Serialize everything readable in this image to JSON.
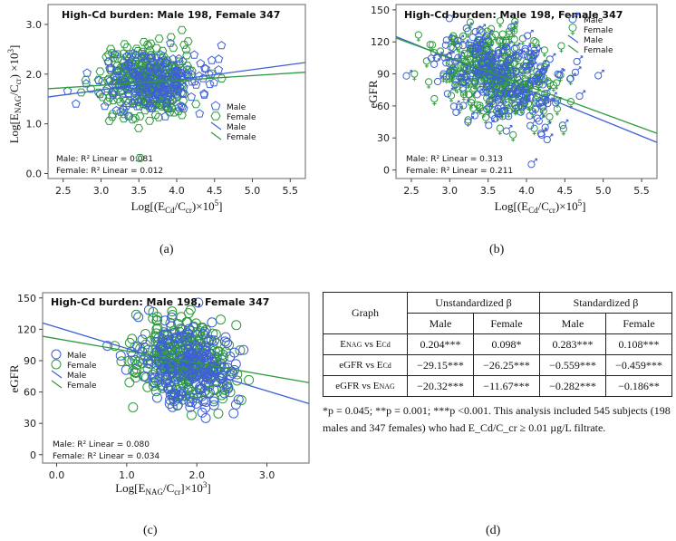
{
  "panels": [
    {
      "id": "a",
      "label": "(a)",
      "title": "High-Cd burden: Male 198, Female 347",
      "xlabel": "Log[(E_Cd/C_cr)×10^5]",
      "ylabel": "Log[E_NAG/C_cr)×10^3]",
      "xticks": [
        "2.5",
        "3.0",
        "3.5",
        "4.0",
        "4.5",
        "5.0",
        "5.5"
      ],
      "yticks": [
        "0.0",
        "1.0",
        "2.0",
        "3.0"
      ],
      "legend": [
        "Male",
        "Female",
        "Male",
        "Female"
      ],
      "annot_male": "Male: R² Linear = 0.081",
      "annot_female": "Female: R² Linear = 0.012"
    },
    {
      "id": "b",
      "label": "(b)",
      "title": "High-Cd burden: Male 198, Female 347",
      "xlabel": "Log[(E_Cd/C_cr)×10^5]",
      "ylabel": "eGFR",
      "xticks": [
        "2.5",
        "3.0",
        "3.5",
        "4.0",
        "4.5",
        "5.0",
        "5.5"
      ],
      "yticks": [
        "0",
        "30",
        "60",
        "90",
        "120",
        "150"
      ],
      "legend": [
        "Male",
        "Female",
        "Male",
        "Female"
      ],
      "annot_male": "Male: R² Linear = 0.313",
      "annot_female": "Female: R² Linear = 0.211"
    },
    {
      "id": "c",
      "label": "(c)",
      "title": "High-Cd burden: Male 198, Female 347",
      "xlabel": "Log[E_NAG/C_cr]×10^3]",
      "ylabel": "eGFR",
      "xticks": [
        "0.0",
        "1.0",
        "2.0",
        "3.0"
      ],
      "yticks": [
        "0",
        "30",
        "60",
        "90",
        "120",
        "150"
      ],
      "legend": [
        "Male",
        "Female",
        "Male",
        "Female"
      ],
      "annot_male": "Male: R² Linear = 0.080",
      "annot_female": "Female: R² Linear = 0.034"
    }
  ],
  "table": {
    "label": "(d)",
    "header_graph": "Graph",
    "header_unstd": "Unstandardized β",
    "header_std": "Standardized β",
    "sub_male": "Male",
    "sub_female": "Female",
    "rows": [
      {
        "graph": "E_NAG vs E_Cd",
        "u_male": "0.204***",
        "u_female": "0.098*",
        "s_male": "0.283***",
        "s_female": "0.108***"
      },
      {
        "graph": "eGFR vs E_Cd",
        "u_male": "−29.15***",
        "u_female": "−26.25***",
        "s_male": "−0.559***",
        "s_female": "−0.459***"
      },
      {
        "graph": "eGFR vs E_NAG",
        "u_male": "−20.32***",
        "u_female": "−11.67***",
        "s_male": "−0.282***",
        "s_female": "−0.186**"
      }
    ],
    "footnote": "*p = 0.045; **p = 0.001; ***p <0.001. This analysis included 545 subjects (198 males and 347 females) who had E_Cd/C_cr ≥ 0.01 µg/L filtrate."
  },
  "colors": {
    "male": "#3f5fd6",
    "female": "#2e9a3e",
    "frame": "#555555"
  },
  "chart_data": [
    {
      "type": "scatter",
      "title": "High-Cd burden: Male 198, Female 347",
      "xlabel": "Log[(E_Cd/C_cr)×10^5]",
      "ylabel": "Log[E_NAG/C_cr)×10^3]",
      "xlim": [
        2.3,
        5.7
      ],
      "ylim": [
        -0.1,
        3.4
      ],
      "series": [
        {
          "name": "Male",
          "n": 198,
          "marker": "pentagon",
          "x_center": 3.7,
          "y_center": 1.85,
          "x_sd": 0.35,
          "y_sd": 0.3,
          "fit": {
            "slope": 0.204,
            "intercept": 1.07
          },
          "r2": 0.081
        },
        {
          "name": "Female",
          "n": 347,
          "marker": "hexagon",
          "x_center": 3.6,
          "y_center": 1.85,
          "x_sd": 0.3,
          "y_sd": 0.35,
          "fit": {
            "slope": 0.098,
            "intercept": 1.48
          },
          "r2": 0.012
        }
      ]
    },
    {
      "type": "scatter",
      "title": "High-Cd burden: Male 198, Female 347",
      "xlabel": "Log[(E_Cd/C_cr)×10^5]",
      "ylabel": "eGFR",
      "xlim": [
        2.3,
        5.7
      ],
      "ylim": [
        -8,
        155
      ],
      "series": [
        {
          "name": "Male",
          "n": 198,
          "marker": "male-symbol",
          "x_center": 3.7,
          "y_center": 86,
          "x_sd": 0.4,
          "y_sd": 22,
          "fit": {
            "slope": -29.15,
            "intercept": 192
          },
          "r2": 0.313
        },
        {
          "name": "Female",
          "n": 347,
          "marker": "female-symbol",
          "x_center": 3.6,
          "y_center": 90,
          "x_sd": 0.35,
          "y_sd": 20,
          "fit": {
            "slope": -26.25,
            "intercept": 184
          },
          "r2": 0.211
        }
      ]
    },
    {
      "type": "scatter",
      "title": "High-Cd burden: Male 198, Female 347",
      "xlabel": "Log[E_NAG/C_cr]×10^3]",
      "ylabel": "eGFR",
      "xlim": [
        -0.2,
        3.6
      ],
      "ylim": [
        -8,
        155
      ],
      "series": [
        {
          "name": "Male",
          "n": 198,
          "marker": "circle",
          "x_center": 1.85,
          "y_center": 85,
          "x_sd": 0.35,
          "y_sd": 22,
          "fit": {
            "slope": -20.32,
            "intercept": 122
          },
          "r2": 0.08
        },
        {
          "name": "Female",
          "n": 347,
          "marker": "circle",
          "x_center": 1.8,
          "y_center": 90,
          "x_sd": 0.35,
          "y_sd": 20,
          "fit": {
            "slope": -11.67,
            "intercept": 111
          },
          "r2": 0.034
        }
      ]
    }
  ]
}
